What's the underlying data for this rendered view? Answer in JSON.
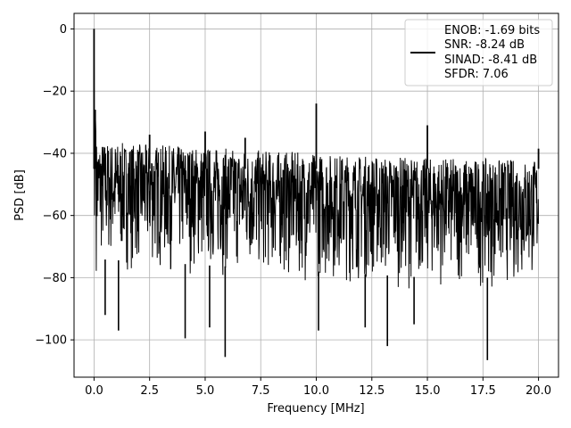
{
  "chart_data": {
    "type": "line",
    "title": "",
    "xlabel": "Frequency [MHz]",
    "ylabel": "PSD [dB]",
    "xlim": [
      -0.9,
      20.9
    ],
    "ylim": [
      -112,
      5
    ],
    "xticks": [
      0.0,
      2.5,
      5.0,
      7.5,
      10.0,
      12.5,
      15.0,
      17.5,
      20.0
    ],
    "xtick_labels": [
      "0.0",
      "2.5",
      "5.0",
      "7.5",
      "10.0",
      "12.5",
      "15.0",
      "17.5",
      "20.0"
    ],
    "yticks": [
      0,
      -20,
      -40,
      -60,
      -80,
      -100
    ],
    "ytick_labels": [
      "0",
      "−20",
      "−40",
      "−60",
      "−80",
      "−100"
    ],
    "grid": true,
    "legend_position": "top-right",
    "line_color": "#000000",
    "series": [
      {
        "legend_lines": [
          "ENOB: -1.69 bits",
          "SNR: -8.24 dB",
          "SINAD: -8.41 dB",
          "SFDR: 7.06"
        ],
        "noise_floor_top": [
          [
            0.1,
            -36
          ],
          [
            2.0,
            -37
          ],
          [
            5.0,
            -38
          ],
          [
            10.0,
            -40
          ],
          [
            15.0,
            -41.5
          ],
          [
            20.0,
            -42
          ]
        ],
        "noise_floor_bottom": [
          [
            0.1,
            -78
          ],
          [
            5.0,
            -80
          ],
          [
            10.0,
            -82
          ],
          [
            15.0,
            -84
          ],
          [
            20.0,
            -84
          ]
        ],
        "peaks": [
          {
            "x": 0.0,
            "y": 0
          },
          {
            "x": 0.05,
            "y": -26
          },
          {
            "x": 2.5,
            "y": -34
          },
          {
            "x": 5.0,
            "y": -33
          },
          {
            "x": 6.8,
            "y": -35
          },
          {
            "x": 10.0,
            "y": -24
          },
          {
            "x": 15.0,
            "y": -31
          },
          {
            "x": 20.0,
            "y": -38.5
          }
        ],
        "dips": [
          {
            "x": 0.5,
            "y": -92
          },
          {
            "x": 1.1,
            "y": -97
          },
          {
            "x": 4.1,
            "y": -99.5
          },
          {
            "x": 5.2,
            "y": -96
          },
          {
            "x": 5.9,
            "y": -105.5
          },
          {
            "x": 10.1,
            "y": -97
          },
          {
            "x": 12.2,
            "y": -96
          },
          {
            "x": 13.2,
            "y": -102
          },
          {
            "x": 14.4,
            "y": -95
          },
          {
            "x": 17.7,
            "y": -106.5
          }
        ]
      }
    ]
  }
}
